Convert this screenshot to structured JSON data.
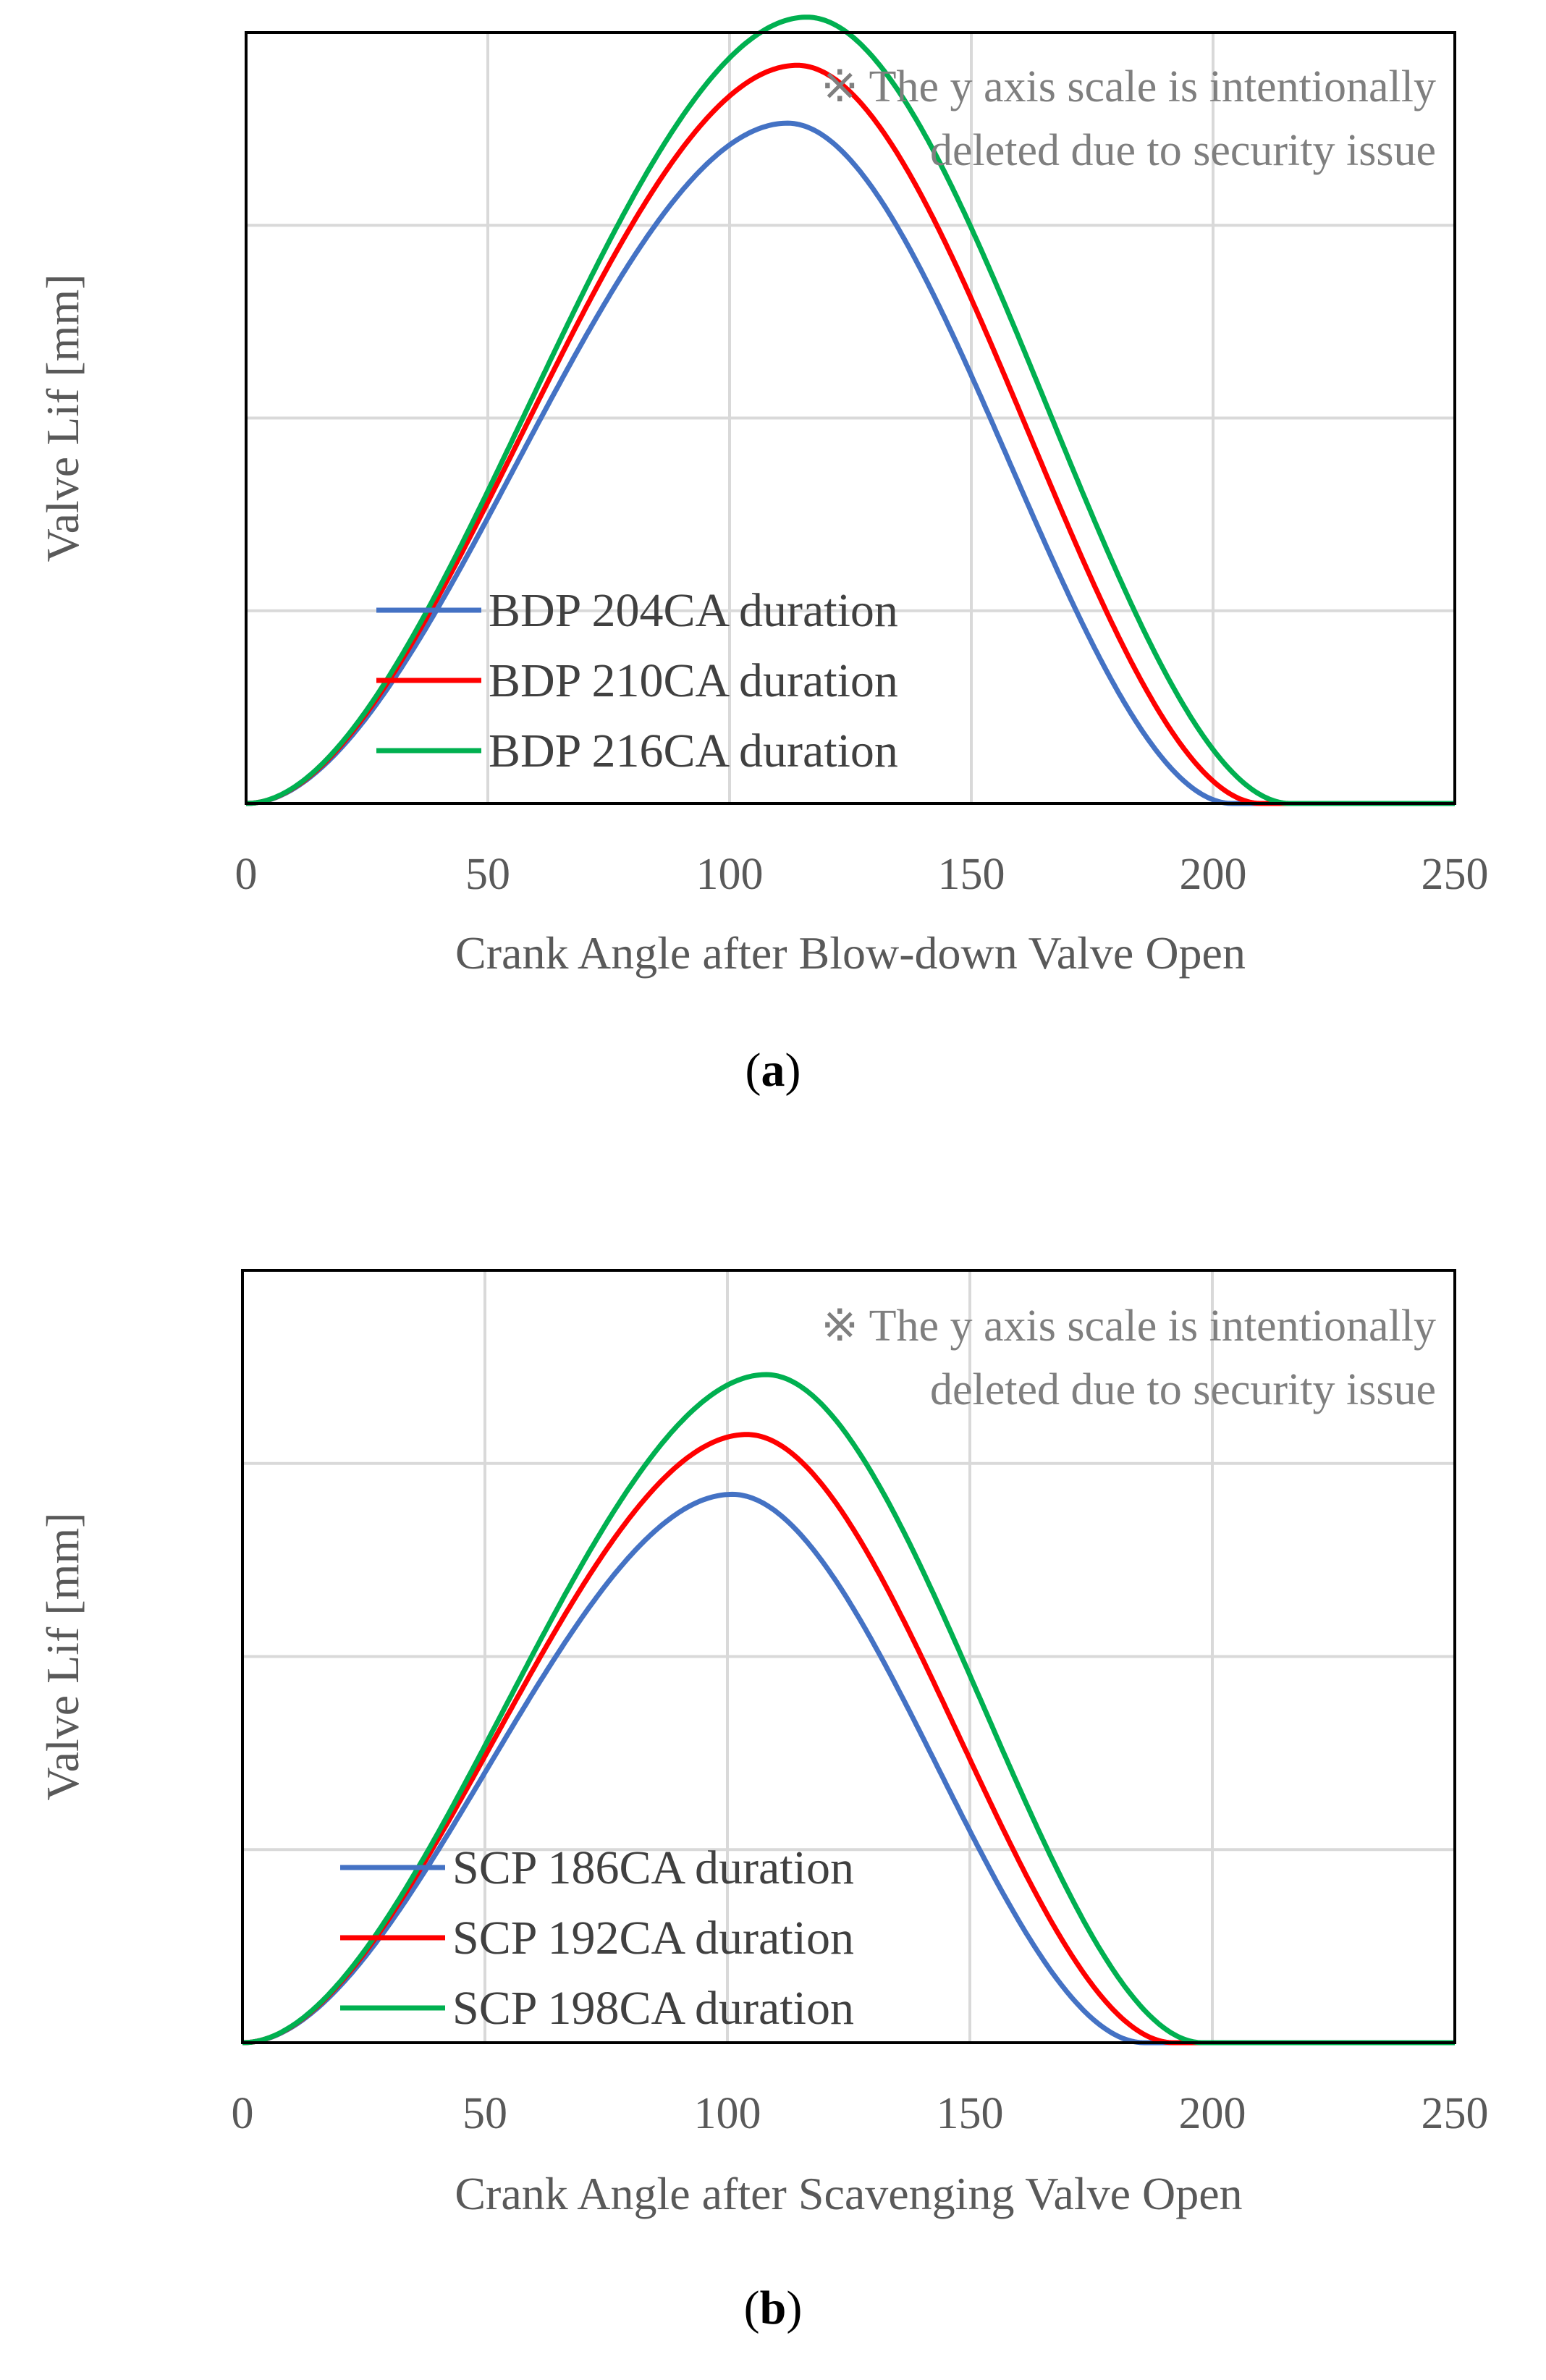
{
  "chart_data": [
    {
      "type": "line",
      "panel_label": "a",
      "note_line1": "※ The y axis scale is intentionally",
      "note_line2": "deleted due to security issue",
      "xlabel": "Crank Angle after Blow-down Valve Open",
      "ylabel": "Valve Lif [mm]",
      "xlim": [
        0,
        250
      ],
      "x_ticks": [
        "0",
        "50",
        "100",
        "150",
        "200",
        "250"
      ],
      "ylim": [
        0,
        4
      ],
      "y_gridlines": [
        1,
        2,
        3,
        4
      ],
      "y_tick_labels_shown": false,
      "legend_position": "lower-center",
      "series": [
        {
          "name": "BDP 204CA duration",
          "color": "#4472c4",
          "duration": 204,
          "peak_x": 112,
          "peak_y": 3.53
        },
        {
          "name": "BDP 210CA duration",
          "color": "#ff0000",
          "duration": 210,
          "peak_x": 114,
          "peak_y": 3.83
        },
        {
          "name": "BDP 216CA duration",
          "color": "#00b050",
          "duration": 216,
          "peak_x": 116,
          "peak_y": 4.08
        }
      ]
    },
    {
      "type": "line",
      "panel_label": "b",
      "note_line1": "※ The y axis scale is intentionally",
      "note_line2": "deleted due to security issue",
      "xlabel": "Crank Angle after Scavenging Valve Open",
      "ylabel": "Valve Lif [mm]",
      "xlim": [
        0,
        250
      ],
      "x_ticks": [
        "0",
        "50",
        "100",
        "150",
        "200",
        "250"
      ],
      "ylim": [
        0,
        4
      ],
      "y_gridlines": [
        1,
        2,
        3,
        4
      ],
      "y_tick_labels_shown": false,
      "legend_position": "lower-center",
      "series": [
        {
          "name": "SCP 186CA duration",
          "color": "#4472c4",
          "duration": 186,
          "peak_x": 101,
          "peak_y": 2.84
        },
        {
          "name": "SCP 192CA duration",
          "color": "#ff0000",
          "duration": 192,
          "peak_x": 104,
          "peak_y": 3.15
        },
        {
          "name": "SCP 198CA duration",
          "color": "#00b050",
          "duration": 198,
          "peak_x": 108,
          "peak_y": 3.46
        }
      ]
    }
  ]
}
